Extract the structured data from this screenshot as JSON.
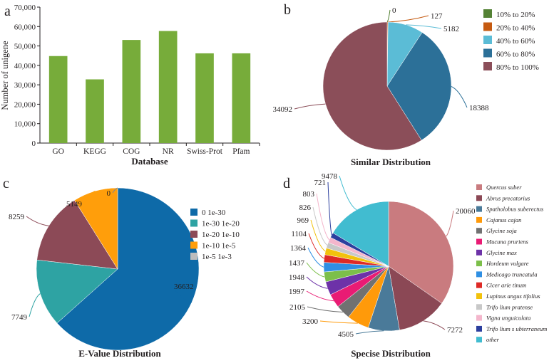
{
  "panels": {
    "a": "a",
    "b": "b",
    "c": "c",
    "d": "d"
  },
  "chart_data": [
    {
      "type": "bar",
      "panel": "a",
      "title": "",
      "xlabel": "Database",
      "ylabel": "Number of unigene",
      "categories": [
        "GO",
        "KEGG",
        "COG",
        "NR",
        "Swiss-Prot",
        "Pfam"
      ],
      "values": [
        44800,
        32800,
        53100,
        57700,
        46200,
        46200
      ],
      "ylim": [
        0,
        70000
      ],
      "yticks": [
        0,
        10000,
        20000,
        30000,
        40000,
        50000,
        60000,
        70000
      ],
      "ytick_labels": [
        "0",
        "10,000",
        "20,000",
        "30,000",
        "40,000",
        "50,000",
        "60,000",
        "70,000"
      ],
      "color": "#77ac3a"
    },
    {
      "type": "pie",
      "panel": "b",
      "title": "Similar Distribution",
      "legend": "right",
      "slices": [
        {
          "label": "10% to 20%",
          "value": 0,
          "value_label": "0",
          "color": "#548235"
        },
        {
          "label": "20% to 40%",
          "value": 127,
          "value_label": "127",
          "color": "#c55a11"
        },
        {
          "label": "40% to 60%",
          "value": 5182,
          "value_label": "5182",
          "color": "#5bbcd6"
        },
        {
          "label": "60% to 80%",
          "value": 18388,
          "value_label": "18388",
          "color": "#2c7098"
        },
        {
          "label": "80% to 100%",
          "value": 34092,
          "value_label": "34092",
          "color": "#8b4e59"
        }
      ]
    },
    {
      "type": "pie",
      "panel": "c",
      "title": "E-Value Distribution",
      "legend": "right",
      "slices": [
        {
          "label": "0 1e-30",
          "value": 36632,
          "value_label": "36632",
          "color": "#0e6aa8"
        },
        {
          "label": "1e-30 1e-20",
          "value": 7749,
          "value_label": "7749",
          "color": "#2ea3a3"
        },
        {
          "label": "1e-20 1e-10",
          "value": 8259,
          "value_label": "8259",
          "color": "#8c4a57"
        },
        {
          "label": "1e-10 1e-5",
          "value": 5149,
          "value_label": "5149",
          "color": "#ff9e0b"
        },
        {
          "label": "1e-5 1e-3",
          "value": 0,
          "value_label": "0",
          "color": "#bdbdbd"
        }
      ]
    },
    {
      "type": "pie",
      "panel": "d",
      "title": "Specise Distribution",
      "legend": "right",
      "slices": [
        {
          "label": "Quercus suber",
          "value": 20060,
          "value_label": "20060",
          "color": "#c97b7f"
        },
        {
          "label": "Abrus precatorius",
          "value": 7272,
          "value_label": "7272",
          "color": "#8b4855"
        },
        {
          "label": "Spatholobus suberectus",
          "value": 4505,
          "value_label": "4505",
          "color": "#4a7a99"
        },
        {
          "label": "Cajanus cajan",
          "value": 3200,
          "value_label": "3200",
          "color": "#ff9a0a"
        },
        {
          "label": "Glycine soja",
          "value": 2105,
          "value_label": "2105",
          "color": "#717171"
        },
        {
          "label": "Mucuna pruriens",
          "value": 1997,
          "value_label": "1997",
          "color": "#e91b74"
        },
        {
          "label": "Glycine max",
          "value": 1948,
          "value_label": "1948",
          "color": "#6d32a8"
        },
        {
          "label": "Hordeum vulgare",
          "value": 1437,
          "value_label": "1437",
          "color": "#7cbf4a"
        },
        {
          "label": "Medicago truncatula",
          "value": 1364,
          "value_label": "1364",
          "color": "#2f8fe3"
        },
        {
          "label": "Cicer arie tinum",
          "value": 1104,
          "value_label": "1104",
          "color": "#de2a26"
        },
        {
          "label": "Lupinus angus tifolius",
          "value": 969,
          "value_label": "969",
          "color": "#f2c20c"
        },
        {
          "label": "Trifo lium pratense",
          "value": 826,
          "value_label": "826",
          "color": "#c8c8c8"
        },
        {
          "label": "Vigna unguiculata",
          "value": 803,
          "value_label": "803",
          "color": "#f4b6cc"
        },
        {
          "label": "Trifo lium s ubterraneum",
          "value": 721,
          "value_label": "721",
          "color": "#2c3f9e"
        },
        {
          "label": "other",
          "value": 9478,
          "value_label": "9478",
          "color": "#41bcd0"
        }
      ]
    }
  ]
}
